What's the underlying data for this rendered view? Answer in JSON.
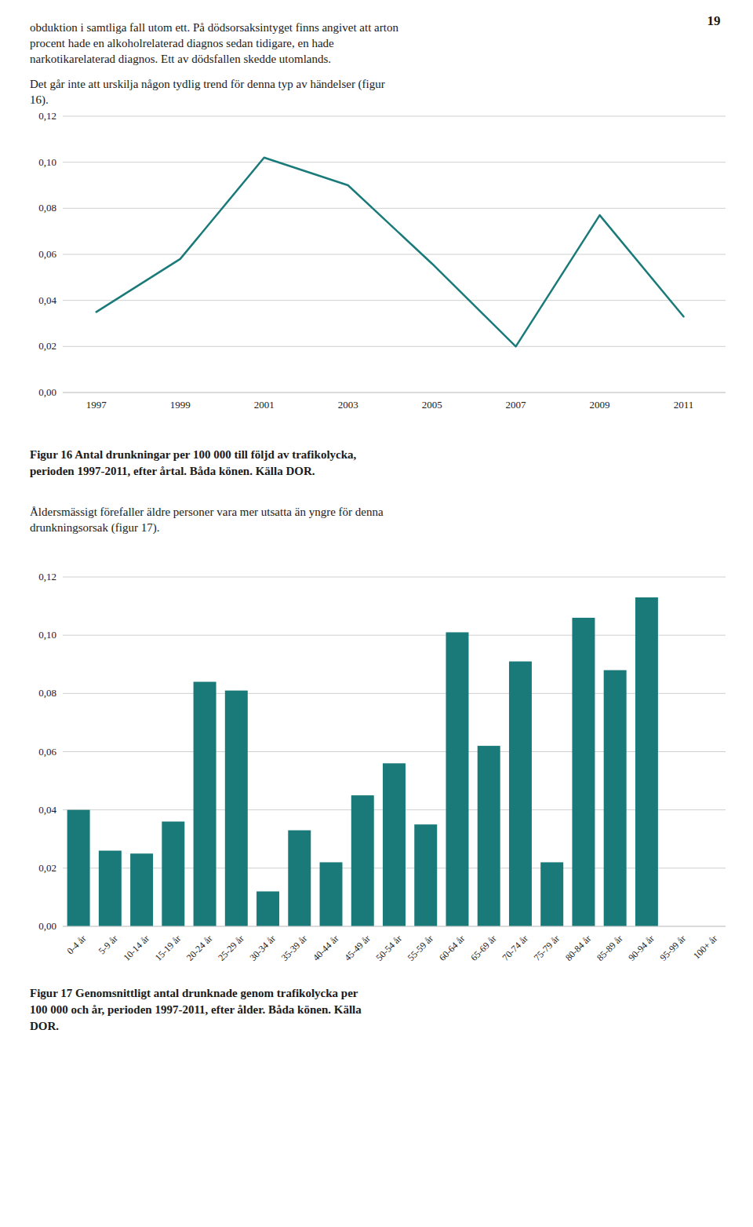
{
  "page_number": "19",
  "text_blocks": [
    [
      "obduktion i samtliga fall utom ett. På dödsorsaksintyget finns angivet att arton",
      "procent hade en alkoholrelaterad diagnos sedan tidigare, en hade",
      "narkotikarelaterad diagnos. Ett av dödsfallen skedde utomlands."
    ],
    [
      "Det går inte att urskilja någon tydlig trend för denna typ av händelser (figur",
      "16)."
    ],
    [
      "Åldersmässigt förefaller äldre personer vara mer utsatta än yngre för denna",
      "drunkningsorsak (figur 17)."
    ]
  ],
  "chart_data": [
    {
      "type": "line",
      "title": "Figur 16 Antal drunkningar per 100 000 till följd av trafikolycka,\nperioden 1997-2011, efter årtal. Båda könen. Källa DOR.",
      "x": [
        1997,
        1999,
        2001,
        2003,
        2005,
        2007,
        2009,
        2011
      ],
      "values": [
        0.035,
        0.058,
        0.102,
        0.09,
        0.056,
        0.02,
        0.077,
        0.033
      ],
      "color": "#1a7a7a",
      "xlim": [
        1996.2,
        2012.0
      ],
      "xticks": [
        1997,
        1999,
        2001,
        2003,
        2005,
        2007,
        2009,
        2011
      ],
      "ylim": [
        0.0,
        0.12
      ],
      "yticks": [
        {
          "value": 0.0,
          "label": "0,00"
        },
        {
          "value": 0.02,
          "label": "0,02"
        },
        {
          "value": 0.04,
          "label": "0,04"
        },
        {
          "value": 0.06,
          "label": "0,06"
        },
        {
          "value": 0.08,
          "label": "0,08"
        },
        {
          "value": 0.1,
          "label": "0,10"
        },
        {
          "value": 0.12,
          "label": "0,12"
        }
      ],
      "grid": true
    },
    {
      "type": "bar",
      "title": "Figur 17 Genomsnittligt antal drunknade genom trafikolycka per\n100 000 och år, perioden 1997-2011, efter ålder. Båda könen. Källa\nDOR.",
      "categories": [
        "0-4 år",
        "5-9 år",
        "10-14 år",
        "15-19 år",
        "20-24 år",
        "25-29 år",
        "30-34 år",
        "35-39 år",
        "40-44 år",
        "45-49 år",
        "50-54 år",
        "55-59 år",
        "60-64 år",
        "65-69 år",
        "70-74 år",
        "75-79 år",
        "80-84 år",
        "85-89 år",
        "90-94 år",
        "95-99 år",
        "100+ år"
      ],
      "values": [
        0.04,
        0.026,
        0.025,
        0.036,
        0.084,
        0.081,
        0.012,
        0.033,
        0.022,
        0.045,
        0.056,
        0.035,
        0.101,
        0.062,
        0.091,
        0.022,
        0.106,
        0.088,
        0.113,
        0.0,
        0.0
      ],
      "color": "#1a7a7a",
      "ylim": [
        0.0,
        0.12
      ],
      "yticks": [
        {
          "value": 0.0,
          "label": "0,00"
        },
        {
          "value": 0.02,
          "label": "0,02"
        },
        {
          "value": 0.04,
          "label": "0,04"
        },
        {
          "value": 0.06,
          "label": "0,06"
        },
        {
          "value": 0.08,
          "label": "0,08"
        },
        {
          "value": 0.1,
          "label": "0,10"
        },
        {
          "value": 0.12,
          "label": "0,12"
        }
      ],
      "grid": true
    }
  ]
}
